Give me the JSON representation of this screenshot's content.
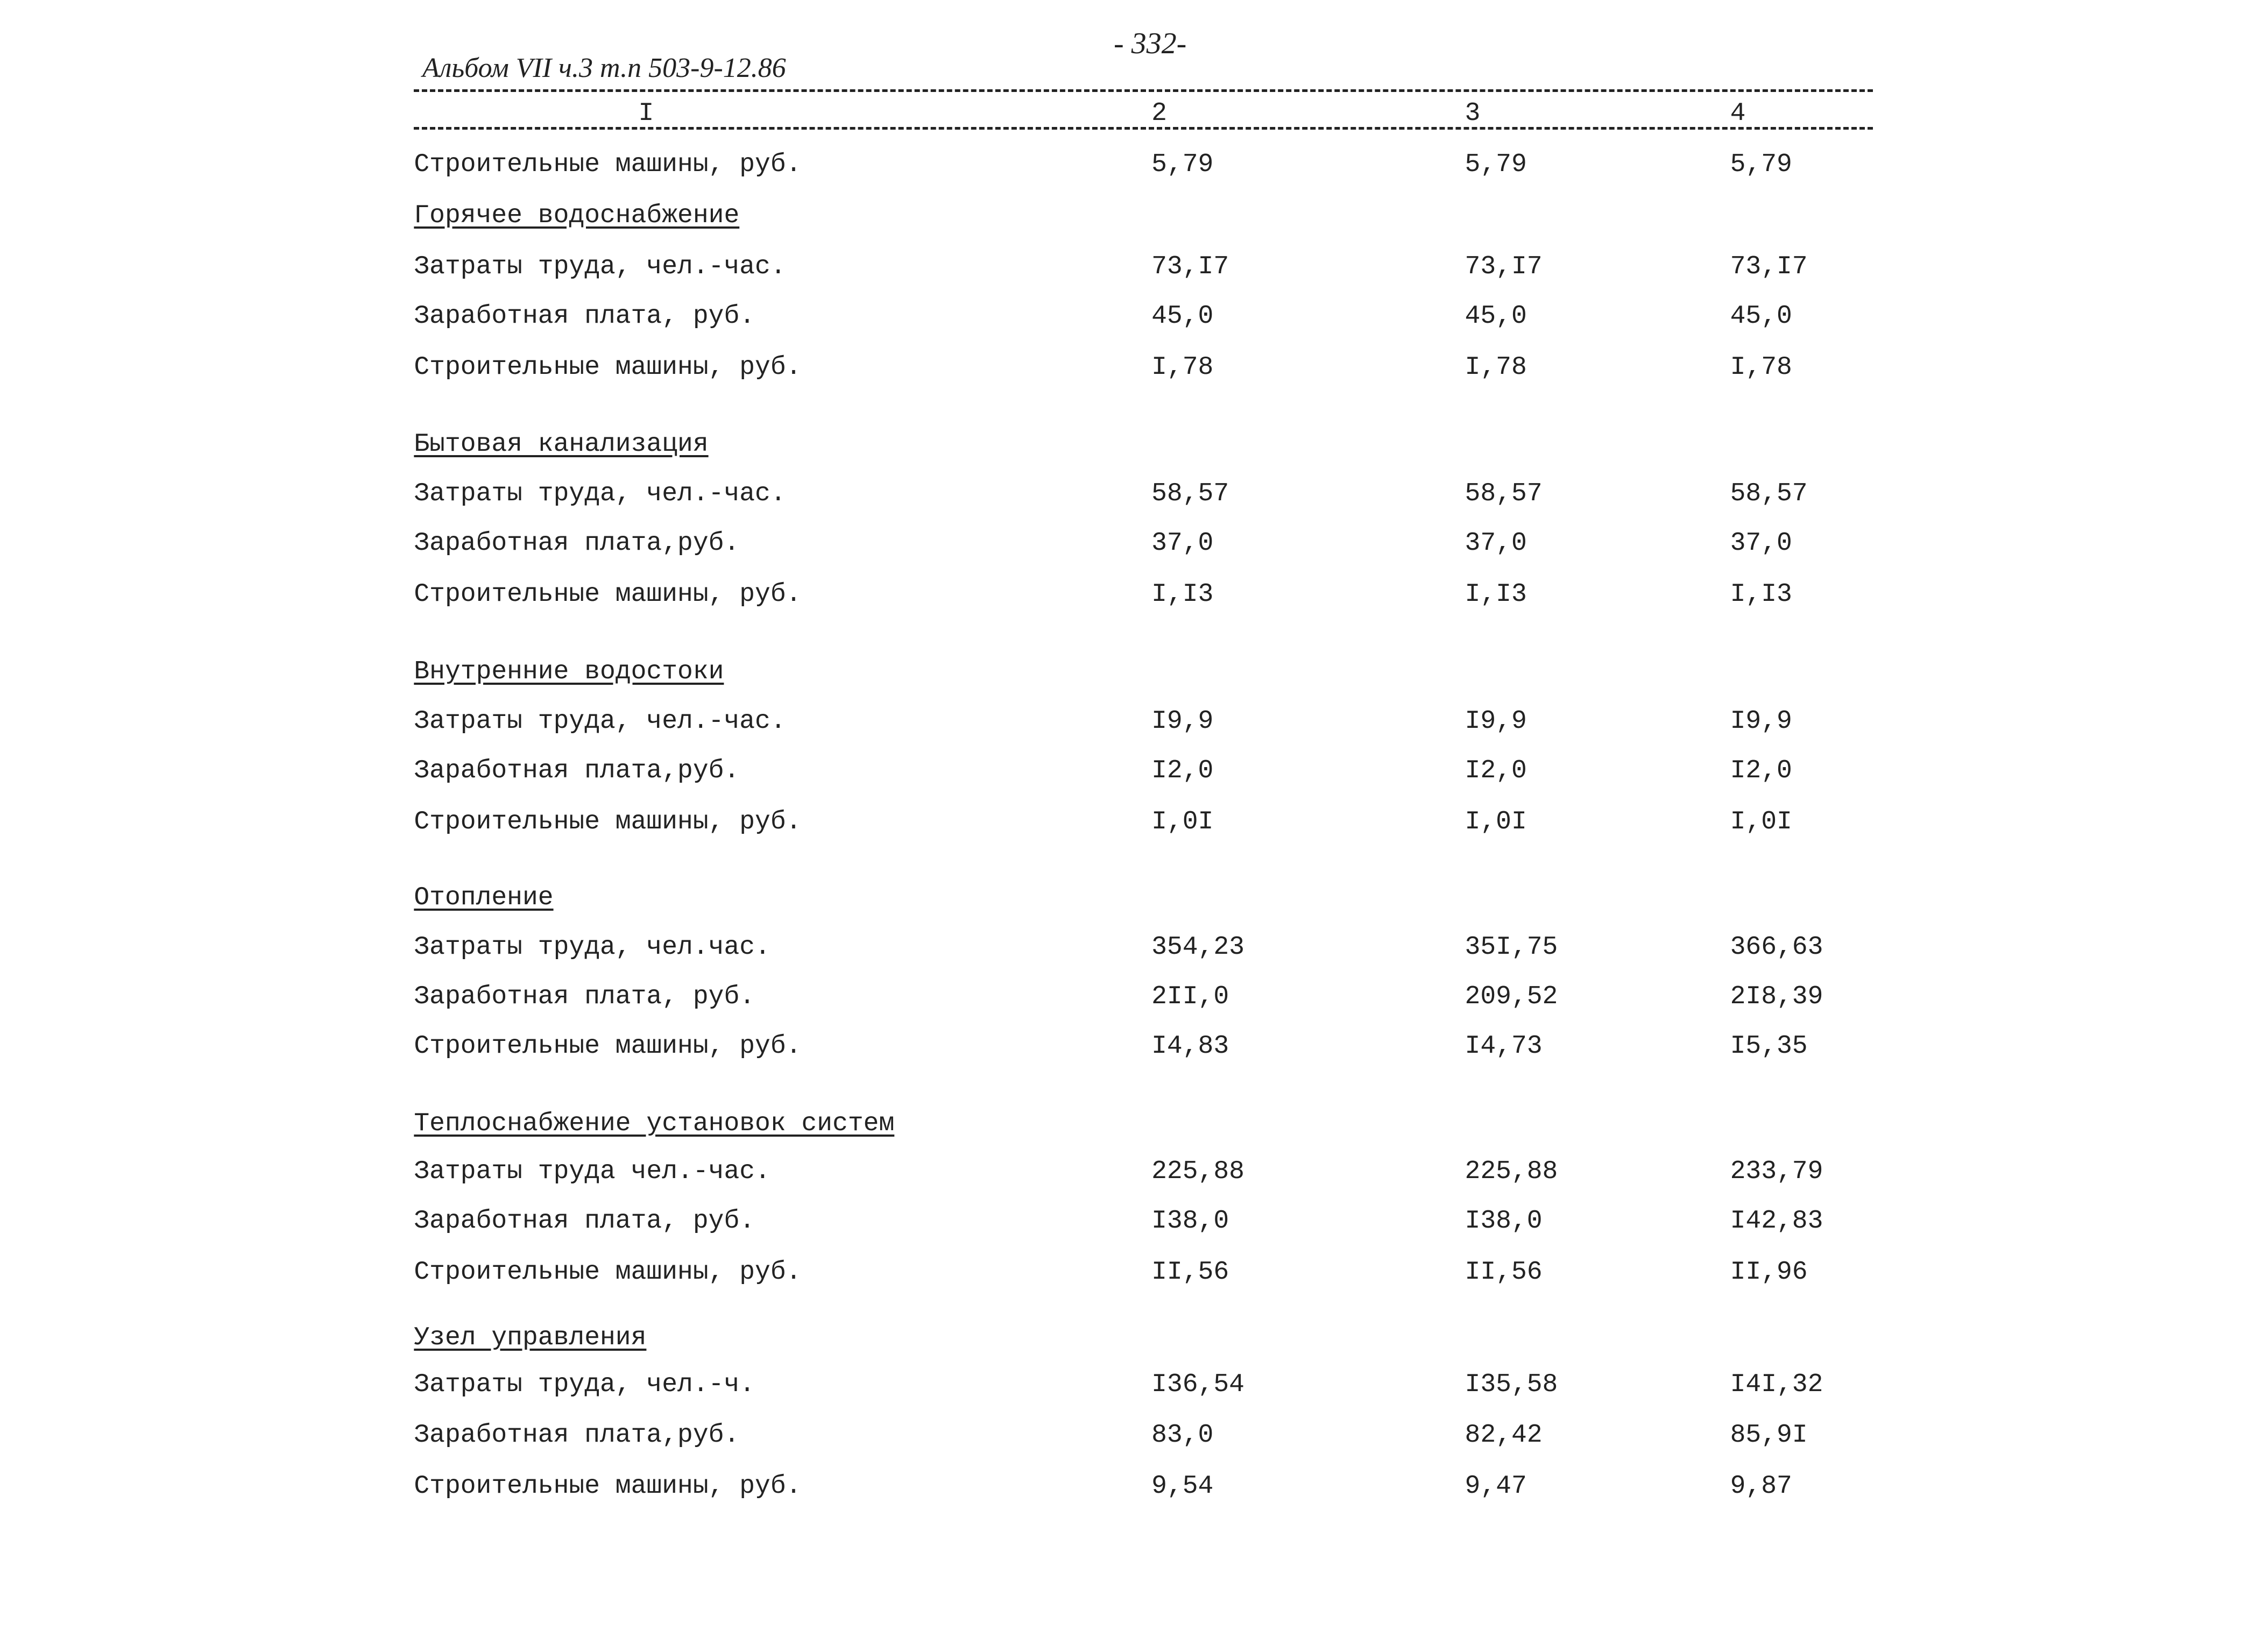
{
  "header": {
    "page_number": "- 332-",
    "album": "Альбом VII ч.3 т.п 503-9-12.86"
  },
  "columns": [
    "I",
    "2",
    "3",
    "4"
  ],
  "sections": [
    {
      "rows": [
        {
          "label": "Строительные машины, руб.",
          "values": [
            "5,79",
            "5,79",
            "5,79"
          ]
        }
      ]
    },
    {
      "title": "Горячее водоснабжение",
      "rows": [
        {
          "label": "Затраты труда, чел.-час.",
          "values": [
            "73,I7",
            "73,I7",
            "73,I7"
          ]
        },
        {
          "label": "Заработная плата, руб.",
          "values": [
            "45,0",
            "45,0",
            "45,0"
          ]
        },
        {
          "label": "Строительные машины, руб.",
          "values": [
            "I,78",
            "I,78",
            "I,78"
          ]
        }
      ]
    },
    {
      "title": "Бытовая канализация",
      "rows": [
        {
          "label": "Затраты труда, чел.-час.",
          "values": [
            "58,57",
            "58,57",
            "58,57"
          ]
        },
        {
          "label": "Заработная плата,руб.",
          "values": [
            "37,0",
            "37,0",
            "37,0"
          ]
        },
        {
          "label": "Строительные машины, руб.",
          "values": [
            "I,I3",
            "I,I3",
            "I,I3"
          ]
        }
      ]
    },
    {
      "title": "Внутренние водостоки",
      "rows": [
        {
          "label": "Затраты труда, чел.-час.",
          "values": [
            "I9,9",
            "I9,9",
            "I9,9"
          ]
        },
        {
          "label": "Заработная плата,руб.",
          "values": [
            "I2,0",
            "I2,0",
            "I2,0"
          ]
        },
        {
          "label": "Строительные машины, руб.",
          "values": [
            "I,0I",
            "I,0I",
            "I,0I"
          ]
        }
      ]
    },
    {
      "title": "Отопление",
      "rows": [
        {
          "label": "Затраты труда, чел.час.",
          "values": [
            "354,23",
            "35I,75",
            "366,63"
          ]
        },
        {
          "label": "Заработная плата, руб.",
          "values": [
            "2II,0",
            "209,52",
            "2I8,39"
          ]
        },
        {
          "label": "Строительные машины, руб.",
          "values": [
            "I4,83",
            "I4,73",
            "I5,35"
          ]
        }
      ]
    },
    {
      "title": "Теплоснабжение установок систем",
      "rows": [
        {
          "label": "Затраты труда чел.-час.",
          "values": [
            "225,88",
            "225,88",
            "233,79"
          ]
        },
        {
          "label": "Заработная плата, руб.",
          "values": [
            "I38,0",
            "I38,0",
            "I42,83"
          ]
        },
        {
          "label": "Строительные машины, руб.",
          "values": [
            "II,56",
            "II,56",
            "II,96"
          ]
        }
      ]
    },
    {
      "title": "Узел управления",
      "rows": [
        {
          "label": "Затраты труда, чел.-ч.",
          "values": [
            "I36,54",
            "I35,58",
            "I4I,32"
          ]
        },
        {
          "label": "Заработная плата,руб.",
          "values": [
            "83,0",
            "82,42",
            "85,9I"
          ]
        },
        {
          "label": "Строительные машины, руб.",
          "values": [
            "9,54",
            "9,47",
            "9,87"
          ]
        }
      ]
    }
  ]
}
